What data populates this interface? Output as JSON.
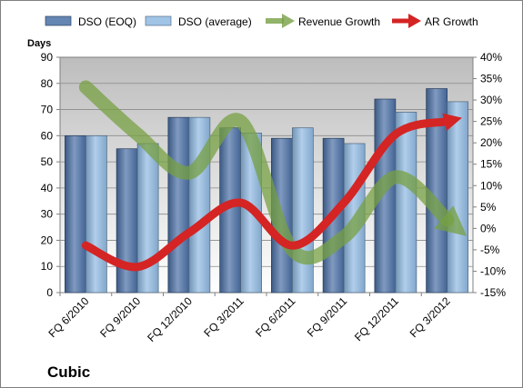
{
  "chart_data": {
    "type": "bar",
    "title": "",
    "company": "Cubic",
    "ylabel": "Days",
    "y2label": "",
    "categories": [
      "FQ 6/2010",
      "FQ 9/2010",
      "FQ 12/2010",
      "FQ 3/2011",
      "FQ 6/2011",
      "FQ 9/2011",
      "FQ 12/2011",
      "FQ 3/2012"
    ],
    "ylim": [
      0,
      90
    ],
    "y_ticks": [
      0,
      10,
      20,
      30,
      40,
      50,
      60,
      70,
      80,
      90
    ],
    "y2lim": [
      -15,
      40
    ],
    "y2_ticks": [
      -15,
      -10,
      -5,
      0,
      5,
      10,
      15,
      20,
      25,
      30,
      35,
      40
    ],
    "y2_tick_labels": [
      "-15%",
      "-10%",
      "-5%",
      "0%",
      "5%",
      "10%",
      "15%",
      "20%",
      "25%",
      "30%",
      "35%",
      "40%"
    ],
    "grid": true,
    "legend_position": "top",
    "series": [
      {
        "name": "DSO (EOQ)",
        "kind": "bar",
        "axis": "left",
        "color": "#4a6fa5",
        "values": [
          60,
          55,
          67,
          63,
          59,
          59,
          74,
          78
        ]
      },
      {
        "name": "DSO (average)",
        "kind": "bar",
        "axis": "left",
        "color": "#8fb9e2",
        "values": [
          60,
          57,
          67,
          61,
          63,
          57,
          69,
          73
        ]
      },
      {
        "name": "Revenue Growth",
        "kind": "arrow",
        "axis": "right",
        "color": "#77a043",
        "values": [
          33,
          22,
          13,
          25,
          -5,
          -2,
          12,
          2
        ]
      },
      {
        "name": "AR Growth",
        "kind": "arrow",
        "axis": "right",
        "color": "#d42424",
        "values": [
          -4,
          -9,
          -1,
          6,
          -4,
          6,
          22,
          25
        ]
      }
    ]
  }
}
